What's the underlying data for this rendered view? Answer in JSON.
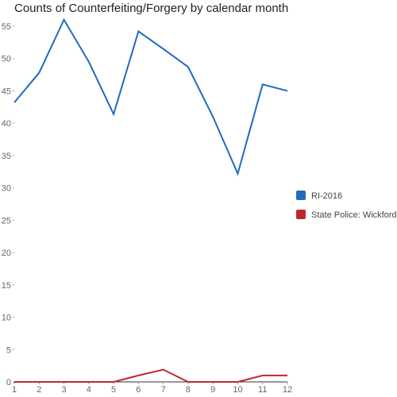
{
  "chart_data": {
    "type": "line",
    "title": "Counts of Counterfeiting/Forgery by calendar month",
    "xlabel": "",
    "ylabel": "",
    "x": [
      1,
      2,
      3,
      4,
      5,
      6,
      7,
      8,
      9,
      10,
      11,
      12
    ],
    "x_tick_labels": [
      "1",
      "2",
      "3",
      "4",
      "5",
      "6",
      "7",
      "8",
      "9",
      "10",
      "11",
      "12"
    ],
    "ylim": [
      0,
      55
    ],
    "y_ticks": [
      0,
      5,
      10,
      15,
      20,
      25,
      30,
      35,
      40,
      45,
      50,
      55
    ],
    "y_tick_labels": [
      "0",
      "5",
      "10",
      "15",
      "20",
      "25",
      "30",
      "35",
      "40",
      "45",
      "50",
      "55"
    ],
    "grid": false,
    "legend_position": "right",
    "series": [
      {
        "name": "RI-2016",
        "color": "#1f6bbf",
        "values": [
          43.2,
          47.8,
          56,
          49.5,
          41.4,
          54.2,
          51.5,
          48.7,
          41,
          32.2,
          46,
          45
        ]
      },
      {
        "name": "State Police: Wickford",
        "color": "#c0282a",
        "values": [
          0,
          0,
          0,
          0,
          0,
          1,
          1.9,
          0,
          0,
          0,
          1,
          1
        ]
      }
    ]
  }
}
